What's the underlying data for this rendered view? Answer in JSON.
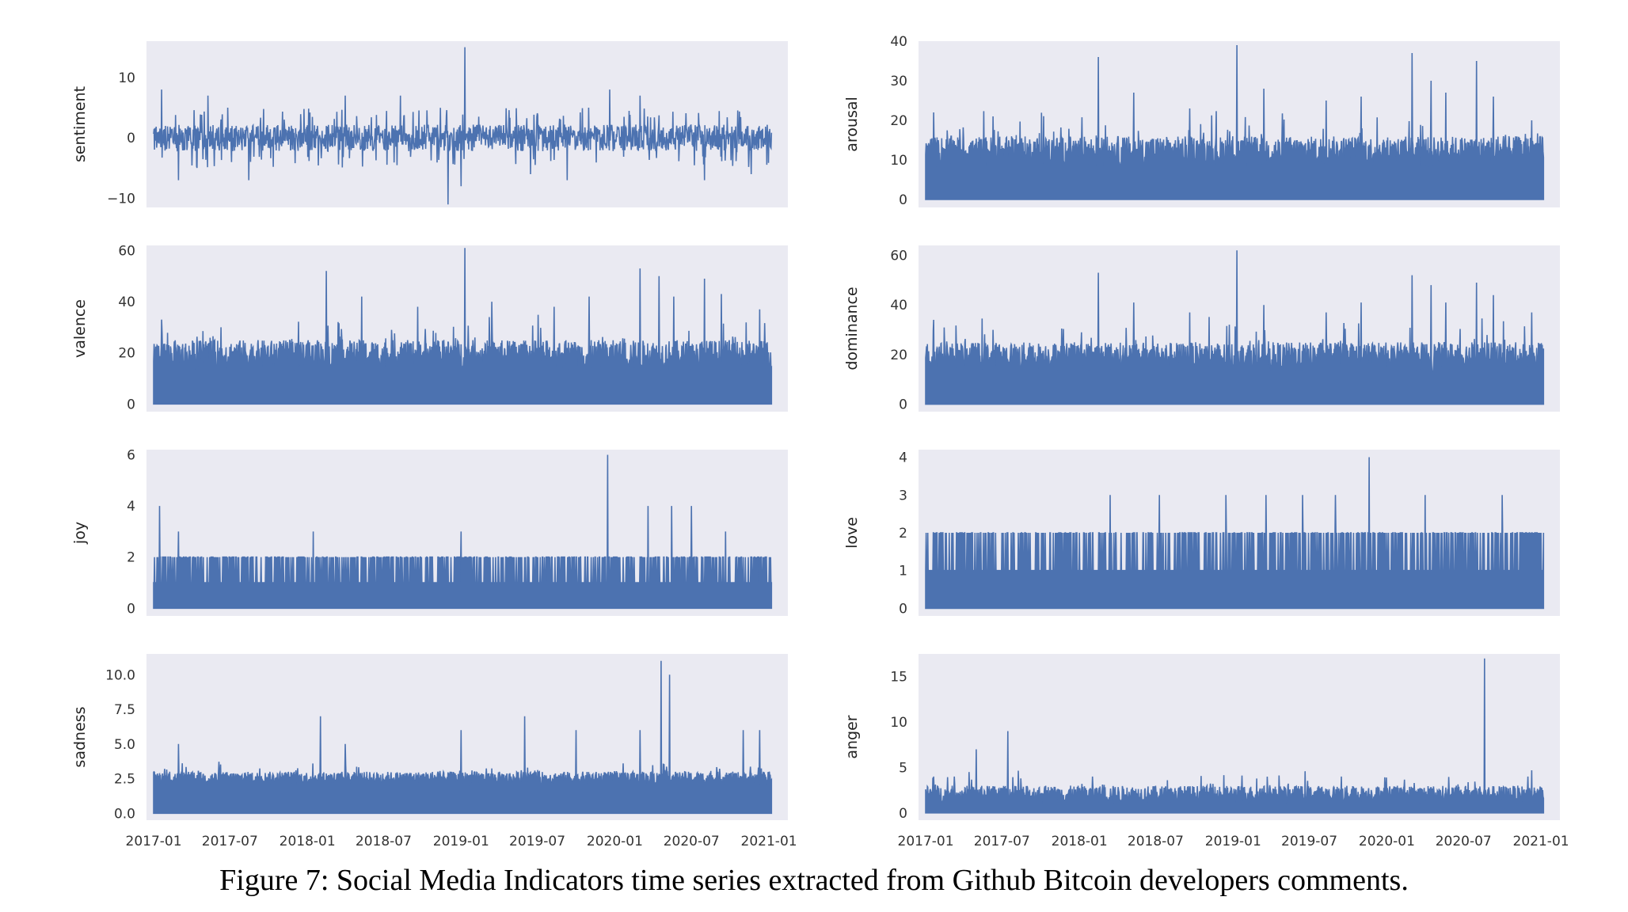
{
  "colors": {
    "panel_bg": "#eaeaf2",
    "series": "#4c72b0",
    "text": "#333333"
  },
  "caption": "Figure 7: Social Media Indicators time series extracted from Github Bitcoin developers comments.",
  "chart_data": [
    {
      "type": "line",
      "ylabel": "sentiment",
      "ylim": [
        -11.5,
        16
      ],
      "yticks": [
        -10,
        0,
        10
      ],
      "ytick_labels": [
        "−10",
        "0",
        "10"
      ],
      "xlim": [
        "2016-12-15",
        "2021-02-15"
      ],
      "x_ticks": [
        "2017-01",
        "2017-07",
        "2018-01",
        "2018-07",
        "2019-01",
        "2019-07",
        "2020-01",
        "2020-07",
        "2021-01"
      ],
      "x_start": "2017-01-01",
      "x_end": "2021-01-07",
      "baseline": [
        -2,
        2
      ],
      "grid": false,
      "peaks": [
        [
          "2017-01-20",
          8
        ],
        [
          "2017-05-10",
          7
        ],
        [
          "2017-03-01",
          -7
        ],
        [
          "2017-08-15",
          -7
        ],
        [
          "2018-04-01",
          7
        ],
        [
          "2018-08-10",
          7
        ],
        [
          "2019-01-10",
          15
        ],
        [
          "2018-12-01",
          -11
        ],
        [
          "2019-01-01",
          -8
        ],
        [
          "2019-06-15",
          -6
        ],
        [
          "2019-09-10",
          -7
        ],
        [
          "2019-12-20",
          8
        ],
        [
          "2020-03-01",
          7
        ],
        [
          "2020-08-01",
          -7
        ],
        [
          "2020-11-20",
          -6
        ]
      ]
    },
    {
      "type": "bar",
      "ylabel": "arousal",
      "ylim": [
        -2,
        40
      ],
      "yticks": [
        0,
        10,
        20,
        30,
        40
      ],
      "ytick_labels": [
        "0",
        "10",
        "20",
        "30",
        "40"
      ],
      "xlim": [
        "2016-12-15",
        "2021-02-15"
      ],
      "x_ticks": [
        "2017-01",
        "2017-07",
        "2018-01",
        "2018-07",
        "2019-01",
        "2019-07",
        "2020-01",
        "2020-07",
        "2021-01"
      ],
      "x_start": "2017-01-01",
      "x_end": "2021-01-07",
      "baseline": [
        8,
        16
      ],
      "grid": false,
      "peaks": [
        [
          "2017-01-20",
          22
        ],
        [
          "2017-06-10",
          21
        ],
        [
          "2018-02-15",
          36
        ],
        [
          "2018-05-10",
          27
        ],
        [
          "2018-09-20",
          23
        ],
        [
          "2019-01-10",
          39
        ],
        [
          "2019-03-15",
          28
        ],
        [
          "2019-08-10",
          25
        ],
        [
          "2019-11-01",
          26
        ],
        [
          "2020-03-01",
          37
        ],
        [
          "2020-04-15",
          30
        ],
        [
          "2020-05-20",
          27
        ],
        [
          "2020-08-01",
          35
        ],
        [
          "2020-09-10",
          26
        ],
        [
          "2020-12-10",
          20
        ]
      ]
    },
    {
      "type": "bar",
      "ylabel": "valence",
      "ylim": [
        -3,
        62
      ],
      "yticks": [
        0,
        20,
        40,
        60
      ],
      "ytick_labels": [
        "0",
        "20",
        "40",
        "60"
      ],
      "xlim": [
        "2016-12-15",
        "2021-02-15"
      ],
      "x_ticks": [
        "2017-01",
        "2017-07",
        "2018-01",
        "2018-07",
        "2019-01",
        "2019-07",
        "2020-01",
        "2020-07",
        "2021-01"
      ],
      "x_start": "2017-01-01",
      "x_end": "2021-01-07",
      "baseline": [
        13,
        25
      ],
      "grid": false,
      "peaks": [
        [
          "2017-01-20",
          33
        ],
        [
          "2017-06-10",
          30
        ],
        [
          "2018-02-15",
          52
        ],
        [
          "2018-05-10",
          42
        ],
        [
          "2018-09-20",
          38
        ],
        [
          "2019-01-10",
          61
        ],
        [
          "2019-03-15",
          40
        ],
        [
          "2019-08-10",
          38
        ],
        [
          "2019-11-01",
          42
        ],
        [
          "2020-03-01",
          53
        ],
        [
          "2020-04-15",
          50
        ],
        [
          "2020-05-20",
          42
        ],
        [
          "2020-08-01",
          49
        ],
        [
          "2020-09-10",
          43
        ],
        [
          "2020-12-10",
          37
        ]
      ]
    },
    {
      "type": "bar",
      "ylabel": "dominance",
      "ylim": [
        -3,
        64
      ],
      "yticks": [
        0,
        20,
        40,
        60
      ],
      "ytick_labels": [
        "0",
        "20",
        "40",
        "60"
      ],
      "xlim": [
        "2016-12-15",
        "2021-02-15"
      ],
      "x_ticks": [
        "2017-01",
        "2017-07",
        "2018-01",
        "2018-07",
        "2019-01",
        "2019-07",
        "2020-01",
        "2020-07",
        "2021-01"
      ],
      "x_start": "2017-01-01",
      "x_end": "2021-01-07",
      "baseline": [
        13,
        25
      ],
      "grid": false,
      "peaks": [
        [
          "2017-01-20",
          34
        ],
        [
          "2017-06-10",
          30
        ],
        [
          "2018-02-15",
          53
        ],
        [
          "2018-05-10",
          41
        ],
        [
          "2018-09-20",
          37
        ],
        [
          "2019-01-10",
          62
        ],
        [
          "2019-03-15",
          40
        ],
        [
          "2019-08-10",
          37
        ],
        [
          "2019-11-01",
          41
        ],
        [
          "2020-03-01",
          52
        ],
        [
          "2020-04-15",
          48
        ],
        [
          "2020-05-20",
          41
        ],
        [
          "2020-08-01",
          49
        ],
        [
          "2020-09-10",
          44
        ],
        [
          "2020-12-10",
          37
        ]
      ]
    },
    {
      "type": "bar",
      "ylabel": "joy",
      "ylim": [
        -0.3,
        6.2
      ],
      "yticks": [
        0,
        2,
        4,
        6
      ],
      "ytick_labels": [
        "0",
        "2",
        "4",
        "6"
      ],
      "xlim": [
        "2016-12-15",
        "2021-02-15"
      ],
      "x_ticks": [
        "2017-01",
        "2017-07",
        "2018-01",
        "2018-07",
        "2019-01",
        "2019-07",
        "2020-01",
        "2020-07",
        "2021-01"
      ],
      "x_start": "2017-01-01",
      "x_end": "2021-01-07",
      "baseline": [
        1,
        1
      ],
      "grid": false,
      "peaks": [
        [
          "2017-01-15",
          4
        ],
        [
          "2019-12-15",
          6
        ],
        [
          "2020-03-20",
          4
        ],
        [
          "2020-05-15",
          4
        ],
        [
          "2020-07-01",
          4
        ],
        [
          "2020-09-20",
          3
        ],
        [
          "2017-03-01",
          3
        ],
        [
          "2018-01-15",
          3
        ],
        [
          "2019-01-01",
          3
        ]
      ],
      "level2_frequency": 0.35
    },
    {
      "type": "bar",
      "ylabel": "love",
      "ylim": [
        -0.2,
        4.2
      ],
      "yticks": [
        0,
        1,
        2,
        3,
        4
      ],
      "ytick_labels": [
        "0",
        "1",
        "2",
        "3",
        "4"
      ],
      "xlim": [
        "2016-12-15",
        "2021-02-15"
      ],
      "x_ticks": [
        "2017-01",
        "2017-07",
        "2018-01",
        "2018-07",
        "2019-01",
        "2019-07",
        "2020-01",
        "2020-07",
        "2021-01"
      ],
      "x_start": "2017-01-01",
      "x_end": "2021-01-07",
      "baseline": [
        1,
        1
      ],
      "grid": false,
      "peaks": [
        [
          "2018-03-15",
          3
        ],
        [
          "2018-07-10",
          3
        ],
        [
          "2018-12-15",
          3
        ],
        [
          "2019-03-20",
          3
        ],
        [
          "2019-06-15",
          3
        ],
        [
          "2019-09-01",
          3
        ],
        [
          "2019-11-20",
          4
        ],
        [
          "2020-04-01",
          3
        ],
        [
          "2020-10-01",
          3
        ]
      ],
      "level2_frequency": 0.3
    },
    {
      "type": "bar",
      "ylabel": "sadness",
      "ylim": [
        -0.5,
        11.5
      ],
      "yticks": [
        0,
        2.5,
        5,
        7.5,
        10
      ],
      "ytick_labels": [
        "0.0",
        "2.5",
        "5.0",
        "7.5",
        "10.0"
      ],
      "xlim": [
        "2016-12-15",
        "2021-02-15"
      ],
      "x_ticks": [
        "2017-01",
        "2017-07",
        "2018-01",
        "2018-07",
        "2019-01",
        "2019-07",
        "2020-01",
        "2020-07",
        "2021-01"
      ],
      "x_start": "2017-01-01",
      "x_end": "2021-01-07",
      "baseline": [
        2,
        3
      ],
      "grid": false,
      "peaks": [
        [
          "2017-03-01",
          5
        ],
        [
          "2018-02-01",
          7
        ],
        [
          "2018-04-01",
          5
        ],
        [
          "2019-01-01",
          6
        ],
        [
          "2019-06-01",
          7
        ],
        [
          "2019-10-01",
          6
        ],
        [
          "2020-03-01",
          6
        ],
        [
          "2020-04-20",
          11
        ],
        [
          "2020-05-10",
          10
        ],
        [
          "2020-11-01",
          6
        ],
        [
          "2020-12-10",
          6
        ]
      ]
    },
    {
      "type": "bar",
      "ylabel": "anger",
      "ylim": [
        -0.8,
        17.5
      ],
      "yticks": [
        0,
        5,
        10,
        15
      ],
      "ytick_labels": [
        "0",
        "5",
        "10",
        "15"
      ],
      "xlim": [
        "2016-12-15",
        "2021-02-15"
      ],
      "x_ticks": [
        "2017-01",
        "2017-07",
        "2018-01",
        "2018-07",
        "2019-01",
        "2019-07",
        "2020-01",
        "2020-07",
        "2021-01"
      ],
      "x_start": "2017-01-01",
      "x_end": "2021-01-07",
      "baseline": [
        1,
        3
      ],
      "grid": false,
      "peaks": [
        [
          "2017-01-20",
          4
        ],
        [
          "2017-03-10",
          4
        ],
        [
          "2017-05-01",
          7
        ],
        [
          "2017-07-15",
          9
        ],
        [
          "2018-02-01",
          4
        ],
        [
          "2019-09-15",
          4
        ],
        [
          "2020-08-20",
          17
        ],
        [
          "2020-12-01",
          4
        ]
      ]
    }
  ]
}
